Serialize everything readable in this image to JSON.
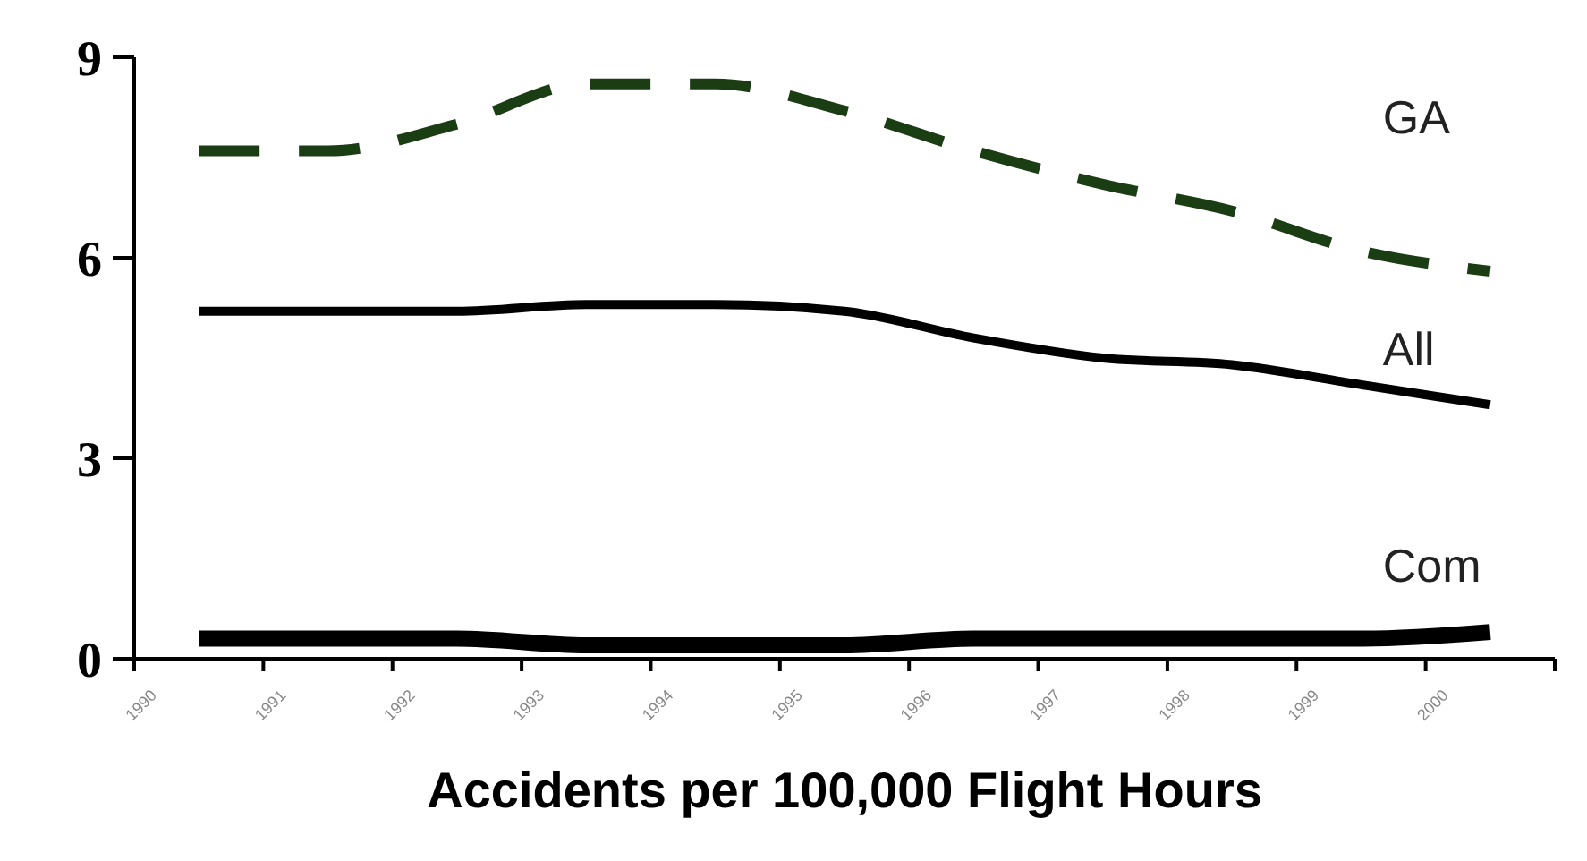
{
  "chart_data": {
    "type": "line",
    "xlabel": "Accidents per 100,000 Flight Hours",
    "categories": [
      "1990",
      "1991",
      "1992",
      "1993",
      "1994",
      "1995",
      "1996",
      "1997",
      "1998",
      "1999",
      "2000"
    ],
    "ylim": [
      0,
      9
    ],
    "yticks": [
      0,
      3,
      6,
      9
    ],
    "marker": "none",
    "series": [
      {
        "name": "GA",
        "color": "#1a3d14",
        "line_style": "dashed",
        "values": [
          7.6,
          7.6,
          8.0,
          8.6,
          8.6,
          8.2,
          7.6,
          7.1,
          6.7,
          6.1,
          5.8
        ]
      },
      {
        "name": "All",
        "color": "#000000",
        "line_style": "solid",
        "values": [
          5.2,
          5.2,
          5.2,
          5.3,
          5.3,
          5.2,
          4.8,
          4.5,
          4.4,
          4.1,
          3.8
        ]
      },
      {
        "name": "Com",
        "color": "#000000",
        "line_style": "solid",
        "values": [
          0.3,
          0.3,
          0.3,
          0.2,
          0.2,
          0.2,
          0.3,
          0.3,
          0.3,
          0.3,
          0.4
        ]
      }
    ]
  }
}
